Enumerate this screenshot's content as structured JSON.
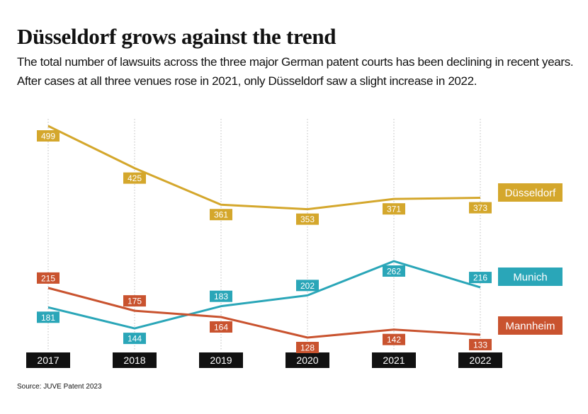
{
  "title": "Düsseldorf grows against the trend",
  "subtitle": [
    "The total number of lawsuits across the three major German patent courts has been declining in recent years.",
    "After cases at all three venues rose in 2021, only Düsseldorf saw a slight increase in 2022."
  ],
  "source": "Source: JUVE Patent 2023",
  "colors": {
    "dusseldorf": "#d4a72c",
    "munich": "#2aa6b8",
    "mannheim": "#c9532f",
    "year_label_bg": "#111111",
    "gridline": "#bdbdbd"
  },
  "chart_data": {
    "type": "line",
    "title": "Düsseldorf grows against the trend",
    "xlabel": "",
    "ylabel": "",
    "x": [
      "2017",
      "2018",
      "2019",
      "2020",
      "2021",
      "2022"
    ],
    "series": [
      {
        "name": "Düsseldorf",
        "color_key": "dusseldorf",
        "values": [
          499,
          425,
          361,
          353,
          371,
          373
        ]
      },
      {
        "name": "Munich",
        "color_key": "munich",
        "values": [
          181,
          144,
          183,
          202,
          262,
          216
        ]
      },
      {
        "name": "Mannheim",
        "color_key": "mannheim",
        "values": [
          215,
          175,
          164,
          128,
          142,
          133
        ]
      }
    ],
    "grid": "vertical dotted",
    "legend": "right, label boxes at line ends",
    "data_labels": true
  }
}
